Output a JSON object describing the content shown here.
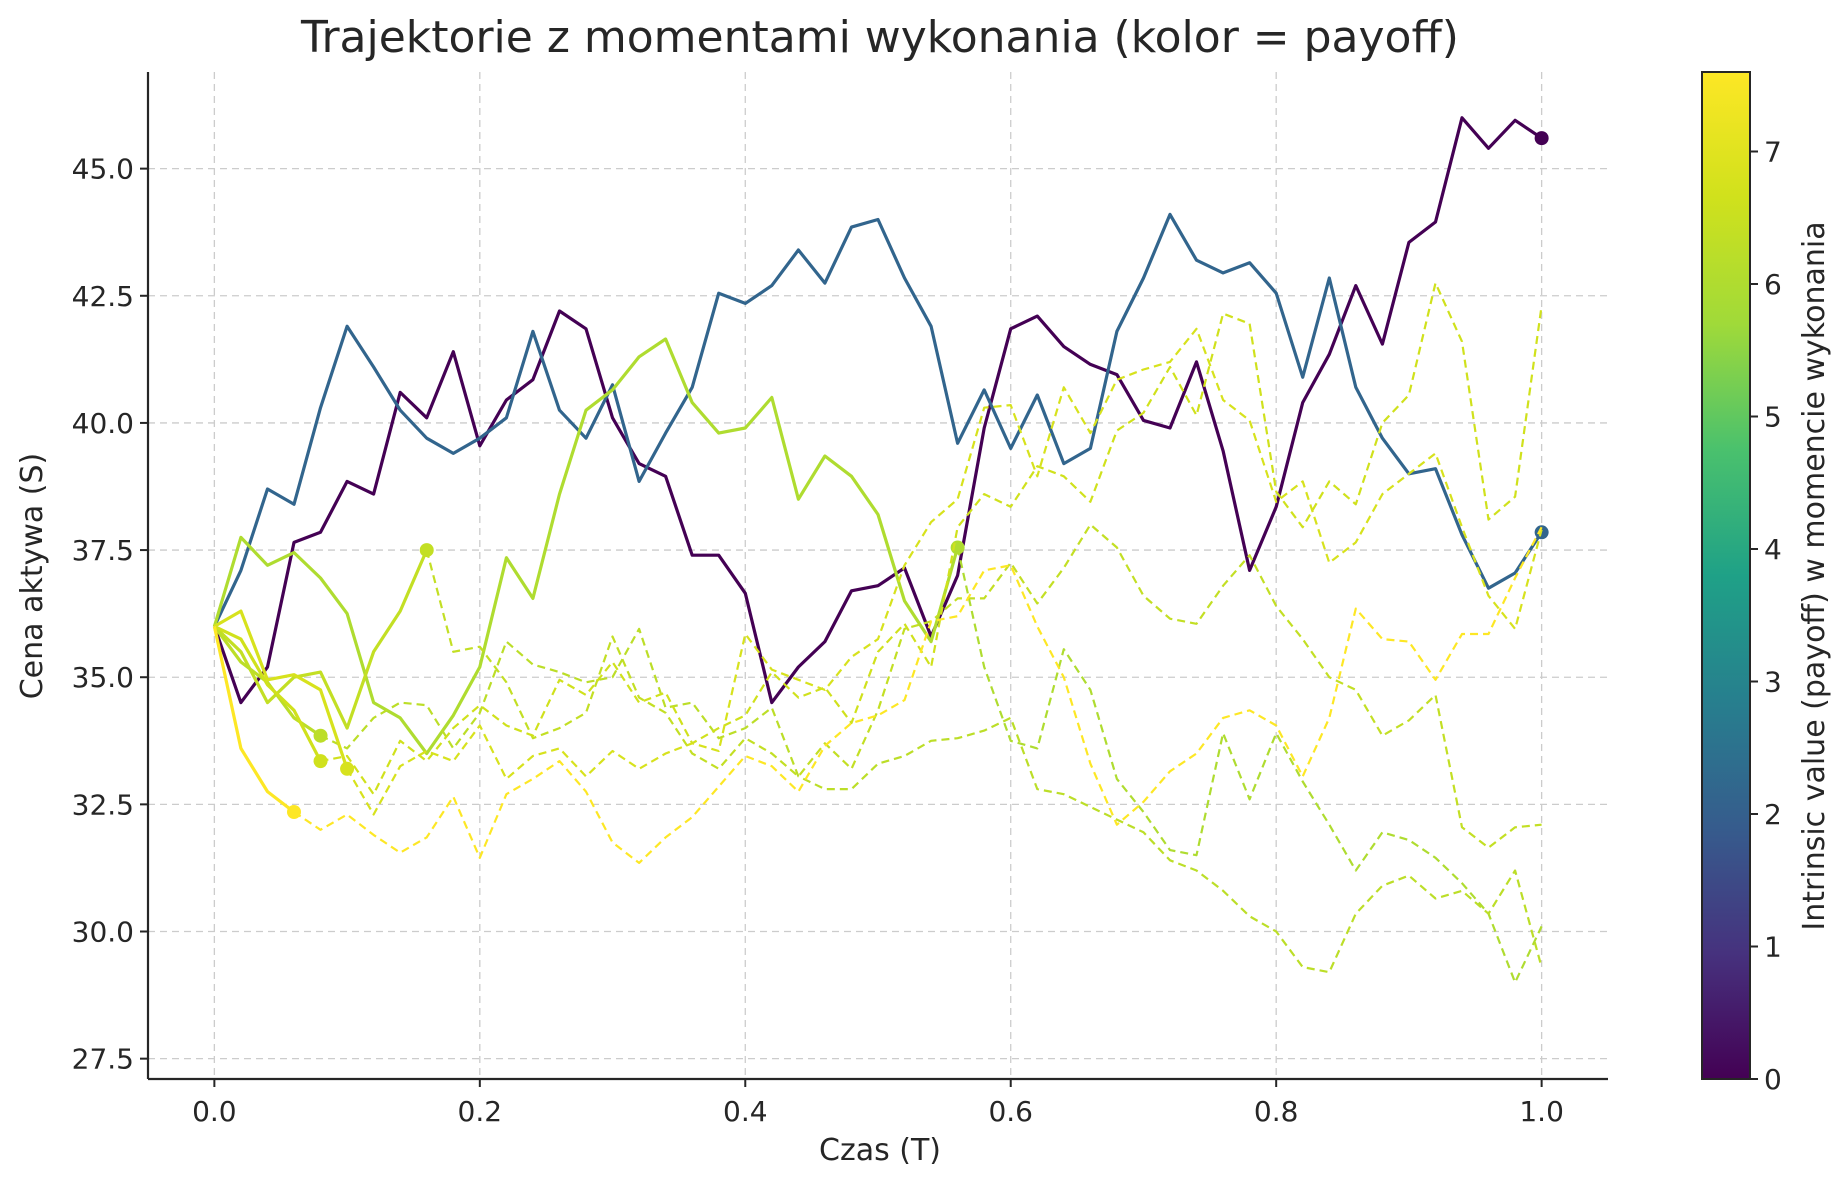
{
  "chart_data": {
    "type": "line",
    "title": "Trajektorie z momentami wykonania (kolor = payoff)",
    "xlabel": "Czas (T)",
    "ylabel": "Cena aktywa (S)",
    "xlim": [
      -0.05,
      1.05
    ],
    "ylim": [
      27.1,
      46.9
    ],
    "xticks": [
      0.0,
      0.2,
      0.4,
      0.6,
      0.8,
      1.0
    ],
    "xtick_labels": [
      "0.0",
      "0.2",
      "0.4",
      "0.6",
      "0.8",
      "1.0"
    ],
    "yticks": [
      27.5,
      30.0,
      32.5,
      35.0,
      37.5,
      40.0,
      42.5,
      45.0
    ],
    "ytick_labels": [
      "27.5",
      "30.0",
      "32.5",
      "35.0",
      "37.5",
      "40.0",
      "42.5",
      "45.0"
    ],
    "grid": true,
    "colorbar": {
      "label": "Intrinsic value (payoff) w momencie wykonania",
      "range": [
        0,
        7.6
      ],
      "ticks": [
        0,
        1,
        2,
        3,
        4,
        5,
        6,
        7
      ],
      "tick_labels": [
        "0",
        "1",
        "2",
        "3",
        "4",
        "5",
        "6",
        "7"
      ],
      "colormap": "viridis"
    },
    "series": [
      {
        "payoff": 0.0,
        "exercise_t": 1.0,
        "y": [
          36.0,
          34.5,
          35.2,
          37.65,
          37.85,
          38.85,
          38.6,
          40.6,
          40.1,
          41.4,
          39.55,
          40.45,
          40.85,
          42.2,
          41.85,
          40.1,
          39.2,
          38.95,
          37.4,
          37.4,
          36.65,
          34.5,
          35.2,
          35.7,
          36.7,
          36.8,
          37.15,
          35.8,
          37.0,
          39.9,
          41.85,
          42.1,
          41.5,
          41.15,
          40.95,
          40.05,
          39.9,
          41.2,
          39.45,
          37.1,
          38.35,
          40.4,
          41.35,
          42.7,
          41.55,
          43.55,
          43.95,
          46.0,
          45.4,
          45.95,
          45.6
        ]
      },
      {
        "payoff": 2.15,
        "exercise_t": 1.0,
        "y": [
          36.0,
          37.1,
          38.7,
          38.4,
          40.3,
          41.9,
          41.1,
          40.25,
          39.7,
          39.4,
          39.7,
          40.1,
          41.8,
          40.25,
          39.7,
          40.75,
          38.85,
          39.8,
          40.7,
          42.55,
          42.35,
          42.7,
          43.4,
          42.75,
          43.85,
          44.0,
          42.85,
          41.9,
          39.6,
          40.65,
          39.5,
          40.55,
          39.2,
          39.5,
          41.8,
          42.85,
          44.1,
          43.2,
          42.95,
          43.15,
          42.55,
          40.9,
          42.85,
          40.7,
          39.7,
          39.0,
          39.1,
          37.8,
          36.75,
          37.05,
          37.85
        ]
      },
      {
        "payoff": 6.0,
        "exercise_t": 0.56,
        "y": [
          36.0,
          37.75,
          37.2,
          37.45,
          36.95,
          36.25,
          34.5,
          34.2,
          33.5,
          34.25,
          35.2,
          37.35,
          36.55,
          38.6,
          40.25,
          40.65,
          41.3,
          41.65,
          40.4,
          39.8,
          39.9,
          40.5,
          38.5,
          39.35,
          38.95,
          38.2,
          36.5,
          35.7,
          37.55,
          35.2,
          33.75,
          33.6,
          35.55,
          34.75,
          33.0,
          32.35,
          31.6,
          31.5,
          33.9,
          32.6,
          33.9,
          32.95,
          32.1,
          31.2,
          31.95,
          31.8,
          31.45,
          30.95,
          30.35,
          29.0,
          30.1
        ]
      },
      {
        "payoff": 6.4,
        "exercise_t": 0.16,
        "y": [
          36.0,
          35.5,
          34.5,
          35.0,
          35.1,
          34.0,
          35.5,
          36.3,
          37.5,
          35.5,
          35.6,
          34.9,
          33.8,
          34.0,
          34.3,
          35.8,
          34.6,
          34.3,
          33.5,
          33.2,
          33.8,
          33.5,
          33.05,
          33.7,
          33.2,
          34.35,
          35.95,
          36.1,
          36.55,
          36.55,
          37.25,
          36.45,
          37.15,
          38.0,
          37.55,
          36.6,
          36.15,
          36.05,
          36.8,
          37.4,
          36.4,
          35.75,
          35.0,
          34.75,
          33.85,
          34.15,
          34.65,
          32.05,
          31.65,
          32.05,
          32.1
        ]
      },
      {
        "payoff": 6.25,
        "exercise_t": 0.08,
        "y": [
          36.0,
          35.3,
          34.9,
          34.2,
          33.85,
          33.6,
          34.2,
          34.5,
          34.45,
          33.6,
          34.3,
          35.7,
          35.25,
          35.1,
          34.9,
          35.0,
          35.95,
          34.4,
          34.5,
          33.8,
          34.0,
          34.4,
          33.05,
          32.8,
          32.8,
          33.3,
          33.45,
          33.75,
          33.8,
          33.95,
          34.2,
          32.8,
          32.7,
          32.45,
          32.2,
          31.95,
          31.4,
          31.2,
          30.8,
          30.3,
          30.0,
          29.3,
          29.2,
          30.35,
          30.9,
          31.1,
          30.65,
          30.8,
          30.35,
          31.2,
          29.3
        ]
      },
      {
        "payoff": 6.65,
        "exercise_t": 0.08,
        "y": [
          36.0,
          35.75,
          34.85,
          34.35,
          33.35,
          33.45,
          32.7,
          33.75,
          33.35,
          34.0,
          34.45,
          34.05,
          33.85,
          34.95,
          34.65,
          35.3,
          34.5,
          34.7,
          33.7,
          34.0,
          34.25,
          35.1,
          34.6,
          34.8,
          34.1,
          35.5,
          36.05,
          35.2,
          37.95,
          38.6,
          38.35,
          39.15,
          38.95,
          38.45,
          39.85,
          40.2,
          41.1,
          40.15,
          42.15,
          41.95,
          38.65,
          37.95,
          38.85,
          38.4,
          40.0,
          40.55,
          42.75,
          41.6,
          38.1,
          38.55,
          42.3
        ]
      },
      {
        "payoff": 6.8,
        "exercise_t": 0.1,
        "y": [
          36.0,
          36.3,
          34.95,
          35.05,
          34.75,
          33.2,
          32.3,
          33.25,
          33.55,
          33.35,
          34.05,
          33.0,
          33.45,
          33.6,
          33.05,
          33.55,
          33.2,
          33.5,
          33.7,
          33.55,
          35.85,
          35.15,
          34.95,
          34.75,
          35.4,
          35.75,
          37.2,
          38.05,
          38.5,
          40.3,
          40.35,
          38.95,
          40.7,
          39.8,
          40.85,
          41.05,
          41.2,
          41.85,
          40.45,
          40.05,
          38.45,
          38.85,
          37.25,
          37.65,
          38.6,
          39.0,
          39.4,
          37.95,
          36.6,
          35.95,
          37.9
        ]
      },
      {
        "payoff": 7.6,
        "exercise_t": 0.06,
        "y": [
          36.0,
          33.6,
          32.75,
          32.35,
          32.0,
          32.3,
          31.9,
          31.55,
          31.85,
          32.65,
          31.45,
          32.7,
          33.0,
          33.35,
          32.75,
          31.75,
          31.35,
          31.85,
          32.25,
          32.85,
          33.45,
          33.25,
          32.75,
          33.65,
          34.1,
          34.25,
          34.55,
          36.1,
          36.2,
          37.1,
          37.2,
          36.0,
          35.0,
          33.3,
          32.1,
          32.55,
          33.15,
          33.5,
          34.2,
          34.35,
          34.05,
          33.05,
          34.2,
          36.35,
          35.75,
          35.7,
          34.95,
          35.85,
          35.85,
          36.95,
          37.95
        ]
      }
    ]
  }
}
